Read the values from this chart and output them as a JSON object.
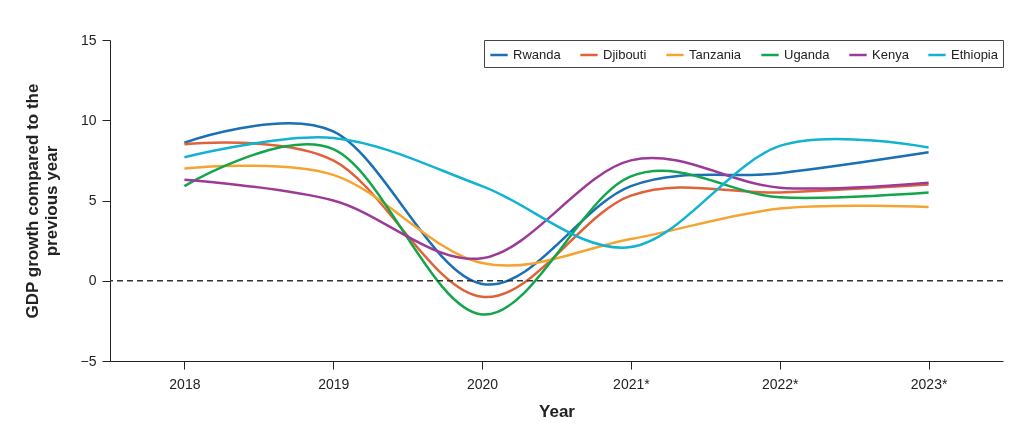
{
  "chart_data": {
    "type": "line",
    "xlabel": "Year",
    "ylabel": "GDP growth compared to the previous year",
    "categories": [
      "2018",
      "2019",
      "2020",
      "2021*",
      "2022*",
      "2023*"
    ],
    "series": [
      {
        "name": "Rwanda",
        "color": "#1a6fb5",
        "values": [
          8.6,
          9.3,
          -0.2,
          5.9,
          6.7,
          8.0
        ]
      },
      {
        "name": "Djibouti",
        "color": "#e0623a",
        "values": [
          8.5,
          7.5,
          -1.0,
          5.3,
          5.5,
          6.0
        ]
      },
      {
        "name": "Tanzania",
        "color": "#f5a431",
        "values": [
          7.0,
          6.6,
          1.1,
          2.6,
          4.5,
          4.6
        ]
      },
      {
        "name": "Uganda",
        "color": "#12a54a",
        "values": [
          5.9,
          8.2,
          -2.1,
          6.5,
          5.2,
          5.5
        ]
      },
      {
        "name": "Kenya",
        "color": "#9c3a97",
        "values": [
          6.3,
          5.0,
          1.4,
          7.5,
          5.8,
          6.1
        ]
      },
      {
        "name": "Ethiopia",
        "color": "#11b3d1",
        "values": [
          7.7,
          8.9,
          5.9,
          2.1,
          8.4,
          8.3
        ]
      }
    ],
    "ylim": [
      -5,
      15
    ],
    "yticks": [
      -5,
      0,
      5,
      10,
      15
    ],
    "grid": false,
    "legend": "top right",
    "marker": "none",
    "line_style": "solid",
    "ref_lines": [
      {
        "axis": "y",
        "value": 0,
        "line_style": "dashed",
        "color": "#333333"
      }
    ]
  }
}
